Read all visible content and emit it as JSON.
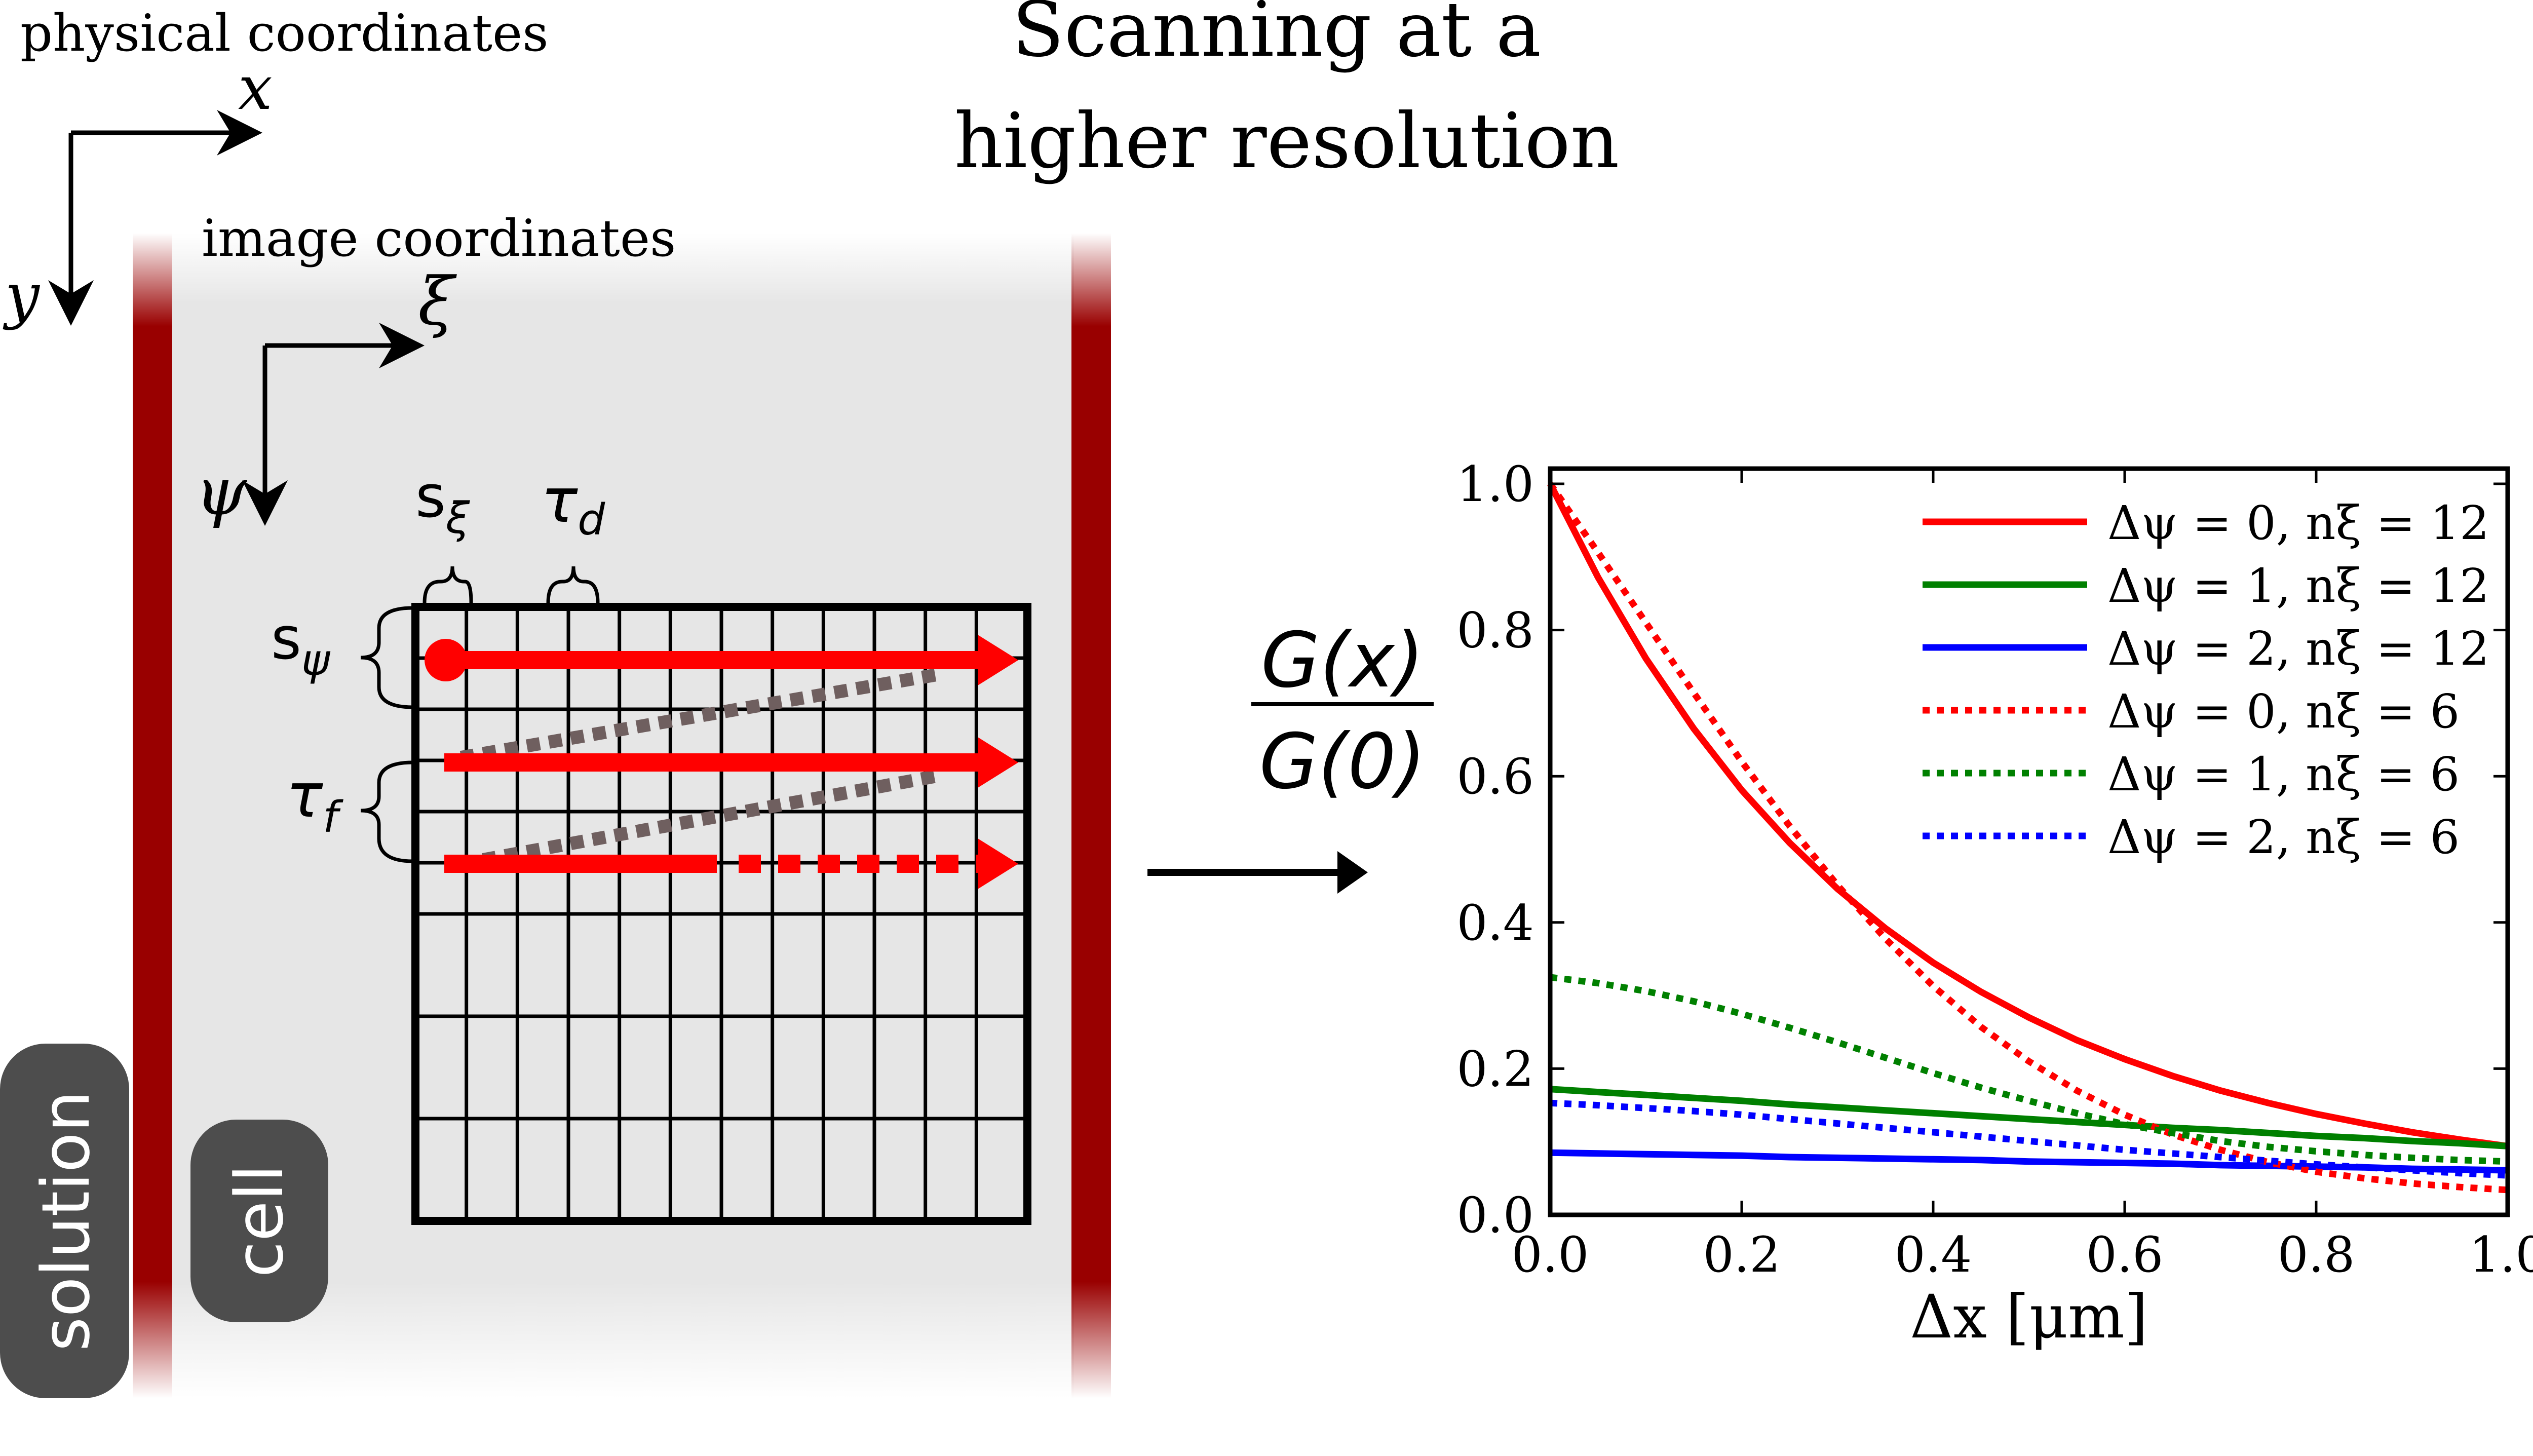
{
  "title": {
    "line1": "Scanning at a",
    "line2": "higher resolution"
  },
  "left_panel": {
    "physical_coordinates": "physical coordinates",
    "image_coordinates": "image coordinates",
    "axis_x": "x",
    "axis_y": "y",
    "axis_xi": "ξ",
    "axis_psi": "ψ",
    "s_xi": {
      "base": "s",
      "sub": "ξ"
    },
    "tau_d": {
      "base": "τ",
      "sub": "d"
    },
    "s_psi": {
      "base": "s",
      "sub": "ψ"
    },
    "tau_f": {
      "base": "τ",
      "sub": "f"
    },
    "solution_label": "solution",
    "cell_label": "cell",
    "grid_columns": 12,
    "grid_rows": 6,
    "colors": {
      "membrane": "#990000",
      "cell_fill": "#e6e6e6",
      "scan": "#ff0000",
      "retrace": "#6f5f5f",
      "label_box": "#4d4d4d"
    }
  },
  "fraction": {
    "numerator": "G(x)",
    "denominator": "G(0)"
  },
  "chart_data": {
    "type": "line",
    "xlabel": "Δx [μm]",
    "xlim": [
      0,
      1
    ],
    "ylim": [
      0,
      1
    ],
    "xticks": [
      "0.0",
      "0.2",
      "0.4",
      "0.6",
      "0.8",
      "1.0"
    ],
    "yticks": [
      "0.0",
      "0.2",
      "0.4",
      "0.6",
      "0.8",
      "1.0"
    ],
    "legend_position": "top-right",
    "x": [
      0,
      0.05,
      0.1,
      0.15,
      0.2,
      0.25,
      0.3,
      0.35,
      0.4,
      0.45,
      0.5,
      0.55,
      0.6,
      0.65,
      0.7,
      0.75,
      0.8,
      0.85,
      0.9,
      0.95,
      1.0
    ],
    "series": [
      {
        "name": "Δψ = 0, nξ = 12",
        "color": "#ff0000",
        "style": "solid",
        "values": [
          1.0,
          0.872,
          0.761,
          0.665,
          0.581,
          0.509,
          0.446,
          0.392,
          0.345,
          0.305,
          0.27,
          0.239,
          0.213,
          0.19,
          0.17,
          0.153,
          0.138,
          0.125,
          0.113,
          0.103,
          0.094
        ]
      },
      {
        "name": "Δψ = 1, nξ = 12",
        "color": "#008000",
        "style": "solid",
        "values": [
          0.172,
          0.168,
          0.164,
          0.16,
          0.156,
          0.151,
          0.147,
          0.143,
          0.139,
          0.135,
          0.131,
          0.127,
          0.123,
          0.119,
          0.116,
          0.112,
          0.108,
          0.105,
          0.101,
          0.098,
          0.094
        ]
      },
      {
        "name": "Δψ = 2, nξ = 12",
        "color": "#0000ff",
        "style": "solid",
        "values": [
          0.085,
          0.084,
          0.083,
          0.082,
          0.081,
          0.079,
          0.078,
          0.077,
          0.076,
          0.075,
          0.073,
          0.072,
          0.071,
          0.07,
          0.068,
          0.067,
          0.066,
          0.065,
          0.063,
          0.062,
          0.061
        ]
      },
      {
        "name": "Δψ = 0, nξ = 6",
        "color": "#ff0000",
        "style": "dotted",
        "values": [
          1.0,
          0.906,
          0.81,
          0.714,
          0.62,
          0.532,
          0.451,
          0.378,
          0.313,
          0.257,
          0.21,
          0.17,
          0.137,
          0.11,
          0.089,
          0.072,
          0.059,
          0.05,
          0.043,
          0.038,
          0.034
        ]
      },
      {
        "name": "Δψ = 1, nξ = 6",
        "color": "#008000",
        "style": "dotted",
        "values": [
          0.325,
          0.317,
          0.306,
          0.292,
          0.275,
          0.256,
          0.236,
          0.215,
          0.194,
          0.174,
          0.156,
          0.139,
          0.124,
          0.112,
          0.101,
          0.093,
          0.087,
          0.082,
          0.078,
          0.075,
          0.073
        ]
      },
      {
        "name": "Δψ = 2, nξ = 6",
        "color": "#0000ff",
        "style": "dotted",
        "values": [
          0.153,
          0.15,
          0.146,
          0.142,
          0.137,
          0.131,
          0.125,
          0.119,
          0.113,
          0.107,
          0.101,
          0.095,
          0.089,
          0.084,
          0.079,
          0.074,
          0.069,
          0.065,
          0.061,
          0.057,
          0.054
        ]
      }
    ]
  }
}
